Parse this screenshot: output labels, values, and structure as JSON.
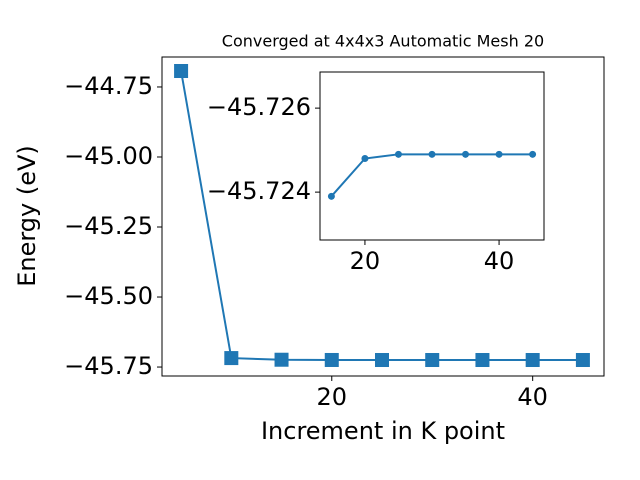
{
  "chart_data": [
    {
      "type": "line",
      "title": "Converged at 4x4x3 Automatic Mesh 20",
      "x_label": "Increment in K point",
      "y_label": "Energy (eV)",
      "x": [
        5,
        10,
        15,
        20,
        25,
        30,
        35,
        40,
        45
      ],
      "series": [
        {
          "color": "#1f77b4",
          "marker": "square",
          "values": [
            -44.693,
            -45.718,
            -45.7239,
            -45.7248,
            -45.7249,
            -45.7249,
            -45.7249,
            -45.7249,
            -45.7249
          ]
        }
      ],
      "xlim": [
        3.1,
        47.1
      ],
      "xticks": [
        20,
        40
      ],
      "ylim": [
        -45.782,
        -44.643
      ],
      "yticks": [
        {
          "value": -44.75,
          "label": "−44.75"
        },
        {
          "value": -45.0,
          "label": "−45.00"
        },
        {
          "value": -45.25,
          "label": "−45.25"
        },
        {
          "value": -45.5,
          "label": "−45.50"
        },
        {
          "value": -45.75,
          "label": "−45.75"
        }
      ]
    },
    {
      "type": "line",
      "x": [
        15,
        20,
        25,
        30,
        35,
        40,
        45
      ],
      "series": [
        {
          "color": "#1f77b4",
          "marker": "circle",
          "values": [
            -45.7239,
            -45.7248,
            -45.7249,
            -45.7249,
            -45.7249,
            -45.7249,
            -45.7249
          ]
        }
      ],
      "xlim": [
        13.3,
        46.7
      ],
      "xticks": [
        20,
        40
      ],
      "ylim": [
        -45.72286,
        -45.72686
      ],
      "yticks": [
        {
          "value": -45.726,
          "label": "−45.726"
        },
        {
          "value": -45.724,
          "label": "−45.724"
        }
      ]
    }
  ]
}
